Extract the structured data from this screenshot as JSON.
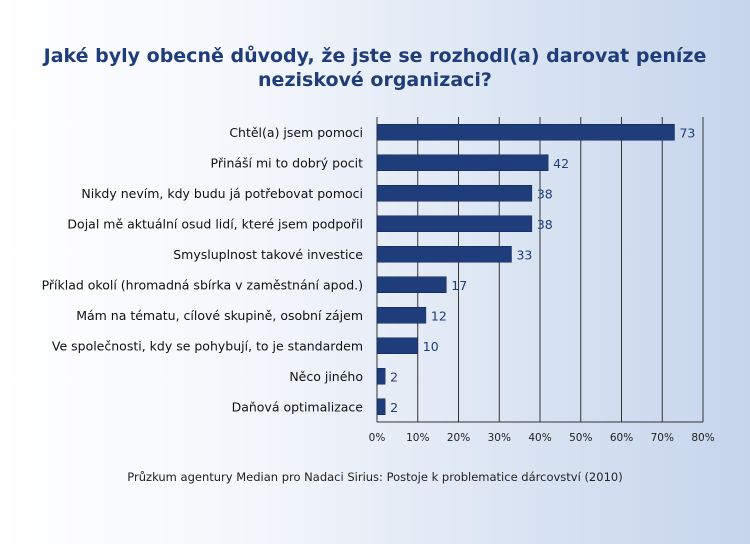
{
  "title_lines": [
    "Jaké byly obecně důvody, že jste se rozhodl(a) darovat peníze",
    "neziskové organizaci?"
  ],
  "source": "Průzkum agentury Median pro Nadaci Sirius: Postoje k problematice dárcovství (2010)",
  "colors": {
    "bar": "#1f3d7a",
    "bar_edge": "#0f2550",
    "grid": "#333333",
    "title": "#1f3d78",
    "value_label": "#1f3d78"
  },
  "chart_data": {
    "type": "bar",
    "orientation": "horizontal",
    "title": "Jaké byly obecně důvody, že jste se rozhodl(a) darovat peníze neziskové organizaci?",
    "categories": [
      "Chtěl(a) jsem pomoci",
      "Přináší mi to dobrý pocit",
      "Nikdy nevím, kdy budu já potřebovat pomoci",
      "Dojal mě aktuální osud lidí, které jsem podpořil",
      "Smysluplnost takové investice",
      "Příklad okolí (hromadná sbírka v zaměstnání apod.)",
      "Mám na tématu, cílové skupině, osobní zájem",
      "Ve společnosti, kdy se pohybují, to je standardem",
      "Něco jiného",
      "Daňová optimalizace"
    ],
    "values": [
      73,
      42,
      38,
      38,
      33,
      17,
      12,
      10,
      2,
      2
    ],
    "value_labels": [
      "73",
      "42",
      "38",
      "38",
      "33",
      "17",
      "12",
      "10",
      "2",
      "2"
    ],
    "xlim": [
      0,
      80
    ],
    "xticks": [
      0,
      10,
      20,
      30,
      40,
      50,
      60,
      70,
      80
    ],
    "xtick_labels": [
      "0%",
      "10%",
      "20%",
      "30%",
      "40%",
      "50%",
      "60%",
      "70%",
      "80%"
    ],
    "grid": "vertical",
    "legend": "none"
  }
}
